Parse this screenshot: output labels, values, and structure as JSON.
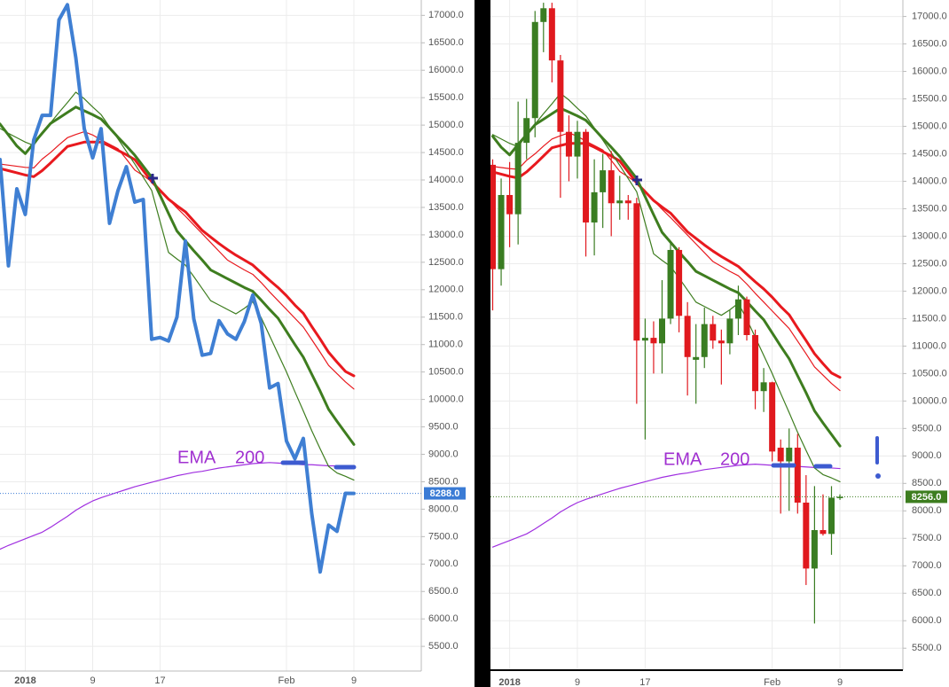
{
  "chart_data": [
    {
      "type": "line",
      "categories": [
        null,
        null,
        null,
        "2018",
        null,
        null,
        null,
        null,
        null,
        null,
        null,
        "9",
        null,
        null,
        null,
        null,
        null,
        null,
        null,
        "17",
        null,
        null,
        null,
        null,
        null,
        null,
        null,
        null,
        null,
        null,
        null,
        null,
        null,
        null,
        "Feb",
        null,
        null,
        null,
        null,
        null,
        null,
        null,
        "9"
      ],
      "ylim": [
        5050,
        17280
      ],
      "yticks": [
        {
          "value": 5500,
          "label": "5500.0"
        },
        {
          "value": 6000,
          "label": "6000.0"
        },
        {
          "value": 6500,
          "label": "6500.0"
        },
        {
          "value": 7000,
          "label": "7000.0"
        },
        {
          "value": 7500,
          "label": "7500.0"
        },
        {
          "value": 8000,
          "label": "8000.0"
        },
        {
          "value": 8500,
          "label": "8500.0"
        },
        {
          "value": 9000,
          "label": "9000.0"
        },
        {
          "value": 9500,
          "label": "9500.0"
        },
        {
          "value": 10000,
          "label": "10000.0"
        },
        {
          "value": 10500,
          "label": "10500.0"
        },
        {
          "value": 11000,
          "label": "11000.0"
        },
        {
          "value": 11500,
          "label": "11500.0"
        },
        {
          "value": 12000,
          "label": "12000.0"
        },
        {
          "value": 12500,
          "label": "12500.0"
        },
        {
          "value": 13000,
          "label": "13000.0"
        },
        {
          "value": 13500,
          "label": "13500.0"
        },
        {
          "value": 14000,
          "label": "14000.0"
        },
        {
          "value": 14500,
          "label": "14500.0"
        },
        {
          "value": 15000,
          "label": "15000.0"
        },
        {
          "value": 15500,
          "label": "15500.0"
        },
        {
          "value": 16000,
          "label": "16000.0"
        },
        {
          "value": 16500,
          "label": "16500.0"
        },
        {
          "value": 17000,
          "label": "17000.0"
        }
      ],
      "grid": true,
      "annotations": [
        "EMA",
        "200"
      ],
      "last_price": {
        "value": 8288,
        "label": "8288.0"
      },
      "last_price_color": "#3a7bd5",
      "series": [
        {
          "color": "#a030e0",
          "width": 1.2,
          "values": [
            7270,
            7340,
            7400,
            7460,
            7520,
            7580,
            7670,
            7770,
            7870,
            7980,
            8070,
            8150,
            8210,
            8260,
            8310,
            8360,
            8410,
            8450,
            8490,
            8530,
            8570,
            8610,
            8640,
            8670,
            8690,
            8720,
            8750,
            8770,
            8790,
            8810,
            8830,
            8840,
            8850,
            8840,
            8830,
            8820,
            8810,
            8810,
            8800,
            8790,
            8790,
            8780,
            8770
          ]
        },
        {
          "color": "#e8191e",
          "width": 1.2,
          "values": [
            14290,
            14270,
            14250,
            14230,
            14220,
            14380,
            14500,
            14640,
            14770,
            14830,
            14880,
            14820,
            14730,
            14650,
            14570,
            14380,
            14180,
            14080,
            13970,
            13810,
            13650,
            13490,
            13340,
            13180,
            13020,
            12860,
            12700,
            12540,
            12450,
            12360,
            12280,
            12130,
            11960,
            11800,
            11640,
            11480,
            11320,
            11090,
            10860,
            10620,
            10470,
            10320,
            10190
          ]
        },
        {
          "color": "#e8191e",
          "width": 3,
          "values": [
            14210,
            14170,
            14130,
            14090,
            14060,
            14170,
            14310,
            14460,
            14610,
            14650,
            14690,
            14690,
            14690,
            14620,
            14540,
            14460,
            14370,
            14170,
            13970,
            13810,
            13650,
            13530,
            13420,
            13250,
            13080,
            12960,
            12840,
            12730,
            12630,
            12540,
            12450,
            12310,
            12170,
            12040,
            11890,
            11720,
            11570,
            11330,
            11100,
            10860,
            10680,
            10510,
            10430
          ]
        },
        {
          "color": "#3e7d1f",
          "width": 1.2,
          "values": [
            14940,
            14850,
            14770,
            14690,
            14630,
            14840,
            15040,
            15230,
            15410,
            15600,
            15480,
            15330,
            15190,
            14970,
            14750,
            14520,
            14290,
            14050,
            13810,
            13240,
            12680,
            12560,
            12450,
            12240,
            12020,
            11800,
            11720,
            11640,
            11560,
            11660,
            11780,
            11490,
            11160,
            10830,
            10500,
            10140,
            9790,
            9430,
            9100,
            8780,
            8660,
            8600,
            8530
          ]
        },
        {
          "color": "#3e7d1f",
          "width": 3,
          "values": [
            15020,
            14820,
            14620,
            14480,
            14670,
            14850,
            15030,
            15130,
            15230,
            15330,
            15260,
            15190,
            15110,
            14950,
            14780,
            14620,
            14450,
            14250,
            14050,
            13720,
            13390,
            13070,
            12890,
            12710,
            12540,
            12360,
            12280,
            12200,
            12120,
            12040,
            11970,
            11810,
            11640,
            11480,
            11240,
            11000,
            10770,
            10460,
            10150,
            9820,
            9600,
            9390,
            9180
          ]
        },
        {
          "color": "#3f7fd3",
          "width": 4,
          "values": [
            14371,
            12435,
            13839,
            13371,
            14726,
            15177,
            15177,
            16919,
            17194,
            16226,
            14935,
            14403,
            14935,
            13210,
            13806,
            14242,
            13597,
            13645,
            11097,
            11129,
            11065,
            11500,
            12887,
            11468,
            10806,
            10839,
            11435,
            11194,
            11097,
            11419,
            11903,
            11387,
            10210,
            10290,
            9242,
            8919,
            9290,
            7919,
            6855,
            7710,
            7597,
            8290,
            8288
          ]
        }
      ]
    },
    {
      "type": "candlestick",
      "categories": [
        null,
        null,
        "2018",
        null,
        null,
        null,
        null,
        null,
        null,
        null,
        "9",
        null,
        null,
        null,
        null,
        null,
        null,
        null,
        "17",
        null,
        null,
        null,
        null,
        null,
        null,
        null,
        null,
        null,
        null,
        null,
        null,
        null,
        null,
        "Feb",
        null,
        null,
        null,
        null,
        null,
        null,
        null,
        "9"
      ],
      "ylim": [
        5100,
        17300
      ],
      "yticks": [
        {
          "value": 5500,
          "label": "5500.0"
        },
        {
          "value": 6000,
          "label": "6000.0"
        },
        {
          "value": 6500,
          "label": "6500.0"
        },
        {
          "value": 7000,
          "label": "7000.0"
        },
        {
          "value": 7500,
          "label": "7500.0"
        },
        {
          "value": 8000,
          "label": "8000.0"
        },
        {
          "value": 8500,
          "label": "8500.0"
        },
        {
          "value": 9000,
          "label": "9000.0"
        },
        {
          "value": 9500,
          "label": "9500.0"
        },
        {
          "value": 10000,
          "label": "10000.0"
        },
        {
          "value": 10500,
          "label": "10500.0"
        },
        {
          "value": 11000,
          "label": "11000.0"
        },
        {
          "value": 11500,
          "label": "11500.0"
        },
        {
          "value": 12000,
          "label": "12000.0"
        },
        {
          "value": 12500,
          "label": "12500.0"
        },
        {
          "value": 13000,
          "label": "13000.0"
        },
        {
          "value": 13500,
          "label": "13500.0"
        },
        {
          "value": 14000,
          "label": "14000.0"
        },
        {
          "value": 14500,
          "label": "14500.0"
        },
        {
          "value": 15000,
          "label": "15000.0"
        },
        {
          "value": 15500,
          "label": "15500.0"
        },
        {
          "value": 16000,
          "label": "16000.0"
        },
        {
          "value": 16500,
          "label": "16500.0"
        },
        {
          "value": 17000,
          "label": "17000.0"
        }
      ],
      "grid": true,
      "annotations": [
        "EMA",
        "200"
      ],
      "last_price": {
        "value": 8256,
        "label": "8256.0"
      },
      "last_price_color": "#3d7d1f",
      "up_color": "#3a7d22",
      "down_color": "#e0191e",
      "open": [
        14300,
        12400,
        13750,
        13400,
        14700,
        15150,
        16900,
        17150,
        16200,
        14900,
        14450,
        14900,
        13250,
        13800,
        14200,
        13600,
        13650,
        13600,
        11100,
        11150,
        11050,
        11500,
        12750,
        11550,
        10750,
        10800,
        11400,
        11100,
        11050,
        11500,
        11850,
        11200,
        10180,
        10340,
        9150,
        8900,
        9150,
        8150,
        6950,
        7650,
        7580,
        8250
      ],
      "high": [
        14400,
        14050,
        14350,
        15450,
        15500,
        17100,
        17250,
        17250,
        16300,
        15200,
        15100,
        14950,
        14400,
        14500,
        14550,
        14100,
        13750,
        13700,
        11500,
        11450,
        12200,
        12900,
        12800,
        11800,
        11400,
        11700,
        11550,
        11300,
        11650,
        12100,
        11900,
        11300,
        10600,
        10350,
        9300,
        9500,
        9400,
        8650,
        8450,
        8300,
        8450,
        8300
      ],
      "low": [
        11650,
        12100,
        12800,
        12850,
        14400,
        14800,
        16350,
        15800,
        13700,
        14000,
        14050,
        12630,
        12650,
        13150,
        13000,
        13300,
        13300,
        9950,
        9300,
        10500,
        10500,
        11400,
        11250,
        10100,
        9950,
        10600,
        10950,
        10300,
        10850,
        11200,
        11100,
        9850,
        9800,
        8900,
        7950,
        8000,
        7950,
        6650,
        5950,
        7550,
        7200,
        8200
      ],
      "close": [
        12400,
        13750,
        13400,
        14700,
        15150,
        16900,
        17150,
        16200,
        14900,
        14450,
        14900,
        13250,
        13800,
        14200,
        13600,
        13650,
        13600,
        11100,
        11150,
        11050,
        11500,
        12750,
        11550,
        10800,
        10800,
        11400,
        11100,
        11050,
        11500,
        11850,
        11200,
        10180,
        10340,
        9080,
        8900,
        9150,
        8150,
        6950,
        7650,
        7580,
        8240,
        8256
      ],
      "series": [
        {
          "color": "#a030e0",
          "width": 1.2,
          "values": [
            7340,
            7400,
            7460,
            7520,
            7580,
            7670,
            7770,
            7870,
            7980,
            8070,
            8150,
            8210,
            8260,
            8310,
            8360,
            8410,
            8450,
            8490,
            8530,
            8570,
            8610,
            8640,
            8670,
            8690,
            8720,
            8750,
            8770,
            8790,
            8810,
            8830,
            8840,
            8850,
            8840,
            8830,
            8820,
            8810,
            8810,
            8800,
            8790,
            8790,
            8780,
            8770
          ]
        },
        {
          "color": "#e8191e",
          "width": 1.2,
          "values": [
            14270,
            14250,
            14230,
            14220,
            14380,
            14500,
            14640,
            14770,
            14830,
            14880,
            14820,
            14730,
            14650,
            14570,
            14380,
            14180,
            14080,
            13970,
            13810,
            13650,
            13490,
            13340,
            13180,
            13020,
            12860,
            12700,
            12540,
            12450,
            12360,
            12280,
            12130,
            11960,
            11800,
            11640,
            11480,
            11320,
            11090,
            10860,
            10620,
            10470,
            10320,
            10190
          ]
        },
        {
          "color": "#e8191e",
          "width": 3,
          "values": [
            14170,
            14130,
            14090,
            14060,
            14170,
            14310,
            14460,
            14610,
            14650,
            14690,
            14690,
            14690,
            14620,
            14540,
            14460,
            14370,
            14170,
            13970,
            13810,
            13650,
            13530,
            13420,
            13250,
            13080,
            12960,
            12840,
            12730,
            12630,
            12540,
            12450,
            12310,
            12170,
            12040,
            11890,
            11720,
            11570,
            11330,
            11100,
            10860,
            10680,
            10510,
            10430
          ]
        },
        {
          "color": "#3e7d1f",
          "width": 1.2,
          "values": [
            14850,
            14770,
            14690,
            14630,
            14840,
            15040,
            15230,
            15410,
            15600,
            15480,
            15330,
            15190,
            14970,
            14750,
            14520,
            14290,
            14050,
            13810,
            13240,
            12680,
            12560,
            12450,
            12240,
            12020,
            11800,
            11720,
            11640,
            11560,
            11660,
            11780,
            11490,
            11160,
            10830,
            10500,
            10140,
            9790,
            9430,
            9100,
            8780,
            8660,
            8600,
            8530
          ]
        },
        {
          "color": "#3e7d1f",
          "width": 3,
          "values": [
            14820,
            14620,
            14480,
            14670,
            14850,
            15030,
            15130,
            15230,
            15330,
            15260,
            15190,
            15110,
            14950,
            14780,
            14620,
            14450,
            14250,
            14050,
            13720,
            13390,
            13070,
            12890,
            12710,
            12540,
            12360,
            12280,
            12200,
            12120,
            12040,
            11970,
            11810,
            11640,
            11480,
            11240,
            11000,
            10770,
            10460,
            10150,
            9820,
            9600,
            9390,
            9180
          ]
        }
      ]
    }
  ]
}
